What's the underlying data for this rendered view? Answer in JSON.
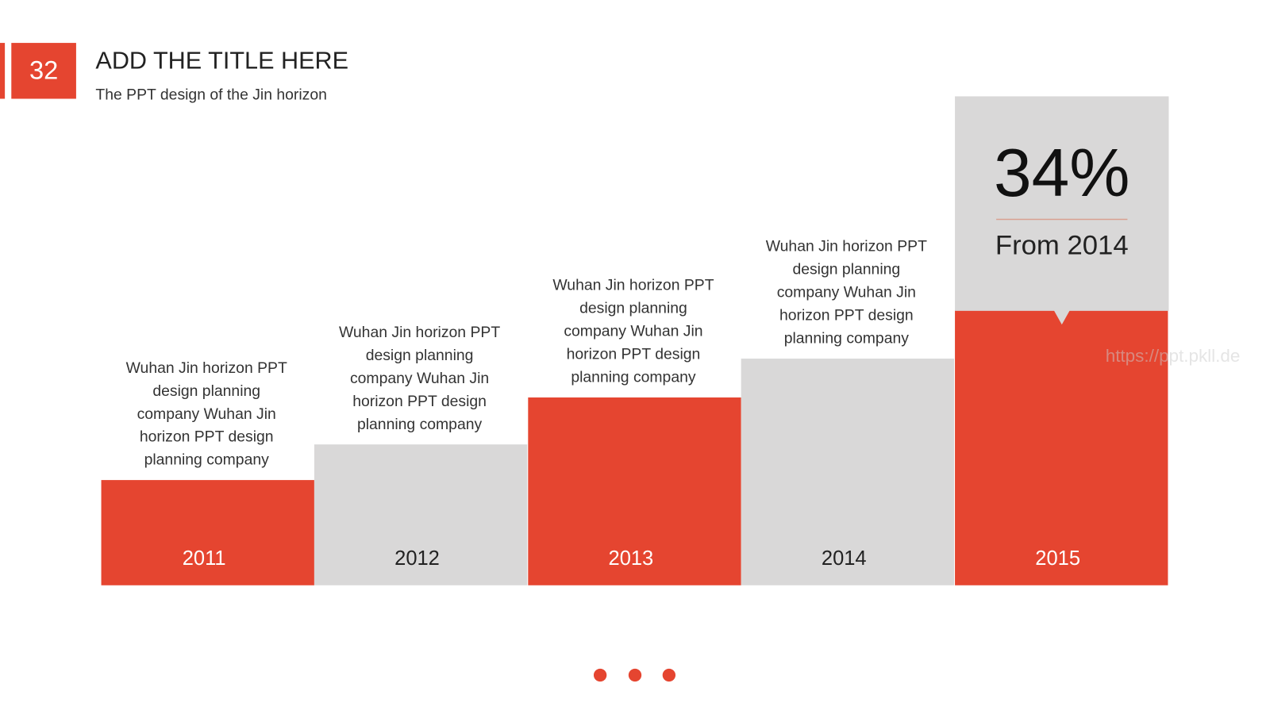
{
  "header": {
    "number": "32",
    "title": "ADD THE TITLE HERE",
    "subtitle": "The PPT design of the Jin horizon"
  },
  "columns": [
    {
      "year": "2011",
      "description": [
        "Wuhan Jin horizon PPT",
        "design planning",
        "company Wuhan Jin",
        "horizon PPT design",
        "planning company"
      ]
    },
    {
      "year": "2012",
      "description": [
        "Wuhan Jin horizon PPT",
        "design planning",
        "company Wuhan Jin",
        "horizon PPT design",
        "planning company"
      ]
    },
    {
      "year": "2013",
      "description": [
        "Wuhan Jin horizon PPT",
        "design planning",
        "company Wuhan Jin",
        "horizon PPT design",
        "planning company"
      ]
    },
    {
      "year": "2014",
      "description": [
        "Wuhan Jin horizon PPT",
        "design planning",
        "company Wuhan Jin",
        "horizon PPT design",
        "planning company"
      ]
    },
    {
      "year": "2015"
    }
  ],
  "highlight": {
    "value": "34%",
    "caption": "From 2014"
  },
  "watermark": "https://ppt.pkll.de"
}
